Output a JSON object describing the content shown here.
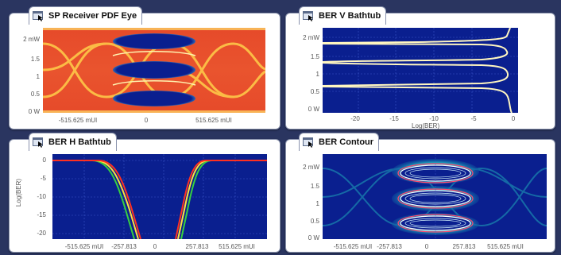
{
  "panels": [
    {
      "id": "pdf-eye",
      "title": "SP Receiver PDF Eye",
      "y_ticks": [
        "2 mW",
        "1.5",
        "1",
        "0.5",
        "0 W"
      ],
      "x_ticks": [
        "-515.625 mUI",
        "0",
        "515.625 mUI"
      ]
    },
    {
      "id": "ber-v-bathtub",
      "title": "BER V Bathtub",
      "y_ticks": [
        "2 mW",
        "1.5",
        "1",
        "0.5",
        "0 W"
      ],
      "x_ticks": [
        "-20",
        "-15",
        "-10",
        "-5",
        "0"
      ],
      "x_axis_title": "Log(BER)"
    },
    {
      "id": "ber-h-bathtub",
      "title": "BER H Bathtub",
      "y_ticks": [
        "0",
        "-5",
        "-10",
        "-15",
        "-20"
      ],
      "y_axis_title": "Log(BER)",
      "x_ticks": [
        "-515.625 mUI",
        "-257.813",
        "0",
        "257.813",
        "515.625 mUI"
      ]
    },
    {
      "id": "ber-contour",
      "title": "BER Contour",
      "y_ticks": [
        "2 mW",
        "1.5",
        "1",
        "0.5",
        "0 W"
      ],
      "x_ticks": [
        "-515.625 mUI",
        "-257.813",
        "0",
        "257.813",
        "515.625 mUI"
      ]
    }
  ],
  "colors": {
    "background": "#2a3560",
    "plot_bg": "#0a1f8f",
    "eye_hot": "#ffd23a",
    "curve_white": "#ffffff",
    "curve_red": "#ff3020",
    "curve_green": "#37d040",
    "curve_yellow": "#ffe040"
  },
  "icons": {
    "panel_icon": "chart-window-icon"
  }
}
